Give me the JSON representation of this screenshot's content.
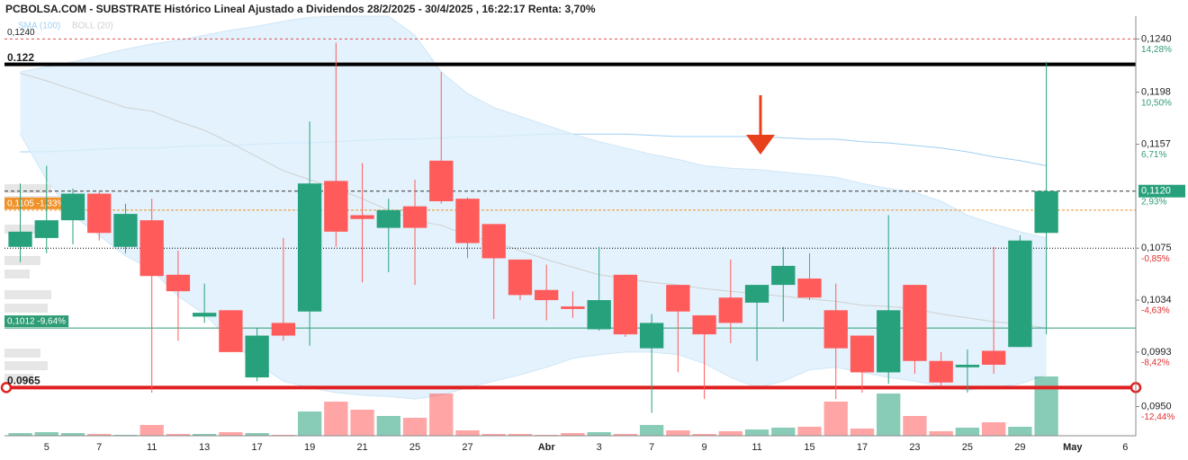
{
  "chart_data": {
    "type": "candlestick",
    "title": "PCBOLSA.COM - SUBSTRATE Histórico Lineal Ajustado a Dividendos 28/2/2025 - 30/4/2025 , 16:22:17 Renta: 3,70%",
    "categories": [
      null,
      "5",
      null,
      "7",
      null,
      "11",
      null,
      "13",
      null,
      "17",
      null,
      "19",
      null,
      "21",
      null,
      "25",
      null,
      "27",
      null,
      null,
      "Abr",
      null,
      "3",
      null,
      "7",
      null,
      "9",
      null,
      "11",
      null,
      "15",
      null,
      "17",
      null,
      "23",
      null,
      "25",
      null,
      "29",
      null,
      "May",
      null,
      "6"
    ],
    "open": [
      0.1076,
      0.1083,
      0.1097,
      0.1118,
      0.1076,
      0.1097,
      0.1054,
      0.1021,
      0.1026,
      0.0973,
      0.1016,
      0.1025,
      0.1128,
      0.1101,
      0.1091,
      0.1108,
      0.1144,
      0.1114,
      0.1094,
      0.1066,
      0.1042,
      0.1029,
      0.1011,
      0.1054,
      0.0996,
      0.1046,
      0.1022,
      0.1036,
      0.1032,
      0.1046,
      0.1051,
      0.1026,
      0.1006,
      0.0977,
      0.1046,
      0.0986,
      0.0981,
      0.0994,
      0.0997,
      0.1087,
      null,
      null,
      null
    ],
    "high": [
      0.1126,
      0.114,
      0.1122,
      0.112,
      0.111,
      0.1114,
      0.1073,
      0.1047,
      0.1026,
      0.1012,
      0.1083,
      0.1175,
      0.1237,
      0.1142,
      0.1114,
      0.1129,
      0.1214,
      0.1115,
      0.1094,
      0.1066,
      0.1062,
      0.1041,
      0.1076,
      0.1054,
      0.1023,
      0.1046,
      0.1022,
      0.1066,
      0.1046,
      0.1076,
      0.1071,
      0.1047,
      0.1006,
      0.1101,
      0.1046,
      0.0993,
      0.0995,
      0.1076,
      0.1085,
      0.1222,
      null,
      null,
      null
    ],
    "low": [
      0.1064,
      0.1071,
      0.1078,
      0.1081,
      0.1071,
      0.0961,
      0.1002,
      0.1016,
      0.0993,
      0.097,
      0.1002,
      0.0998,
      0.1076,
      0.1048,
      0.1056,
      0.1046,
      0.111,
      0.1067,
      0.1019,
      0.1034,
      0.1018,
      0.102,
      0.101,
      0.1005,
      0.0945,
      0.0977,
      0.0956,
      0.1,
      0.0986,
      0.1017,
      0.1034,
      0.0956,
      0.0961,
      0.0968,
      0.0976,
      0.0966,
      0.0961,
      0.0976,
      0.0997,
      0.1007,
      null,
      null,
      null
    ],
    "close": [
      0.1088,
      0.1097,
      0.1118,
      0.1087,
      0.1102,
      0.1053,
      0.1041,
      0.1024,
      0.0993,
      0.1006,
      0.1006,
      0.1126,
      0.1088,
      0.1098,
      0.1105,
      0.1091,
      0.1112,
      0.1079,
      0.1067,
      0.1038,
      0.1034,
      0.1027,
      0.1034,
      0.1007,
      0.1016,
      0.1025,
      0.1007,
      0.1016,
      0.1046,
      0.1061,
      0.1036,
      0.0996,
      0.0977,
      0.1026,
      0.0986,
      0.0969,
      0.0983,
      0.0983,
      0.1081,
      0.112,
      null,
      null,
      null
    ],
    "volume": [
      3,
      4,
      3,
      2,
      1,
      12,
      2,
      2,
      4,
      3,
      1,
      27,
      38,
      29,
      22,
      20,
      47,
      6,
      2,
      2,
      1,
      3,
      4,
      2,
      12,
      6,
      2,
      5,
      7,
      9,
      10,
      38,
      8,
      47,
      22,
      5,
      9,
      15,
      10,
      66,
      null,
      null,
      null
    ],
    "up_color": "#26a17b",
    "down_color": "#ff5b5b",
    "overlays": [
      {
        "name": "SMA (100)",
        "color": "#9fd0f0",
        "values": [
          0.1151,
          0.1151,
          0.1152,
          0.1153,
          0.1154,
          0.1154,
          0.1155,
          0.1156,
          0.1156,
          0.1157,
          0.1158,
          0.1158,
          0.1159,
          0.116,
          0.1161,
          0.1161,
          0.1162,
          0.1163,
          0.1163,
          0.1164,
          0.1165,
          0.1165,
          0.1165,
          0.1165,
          0.1164,
          0.1163,
          0.1163,
          0.1163,
          0.1163,
          0.1162,
          0.1161,
          0.1161,
          0.1159,
          0.1158,
          0.1156,
          0.1154,
          0.1151,
          0.1147,
          0.1144,
          0.114,
          null,
          null,
          null
        ]
      },
      {
        "name": "BOLL (20)",
        "color": "#d0d0d0",
        "fill": "#dcefFb",
        "upper": [
          0.1214,
          0.1218,
          0.1222,
          0.1227,
          0.1232,
          0.1236,
          0.1239,
          0.1243,
          0.1247,
          0.125,
          0.1254,
          0.1257,
          0.1258,
          0.1258,
          0.1258,
          0.1243,
          0.1214,
          0.1197,
          0.1186,
          0.1179,
          0.1172,
          0.1165,
          0.1159,
          0.1154,
          0.1149,
          0.1145,
          0.114,
          0.1138,
          0.1137,
          0.1135,
          0.1133,
          0.1131,
          0.1126,
          0.1122,
          0.1119,
          0.1112,
          0.1101,
          0.1094,
          0.1088,
          0.1083,
          null,
          null,
          null
        ],
        "middle": [
          0.1213,
          0.1207,
          0.12,
          0.1193,
          0.1186,
          0.1183,
          0.1175,
          0.1168,
          0.1158,
          0.1147,
          0.1136,
          0.1129,
          0.1122,
          0.1114,
          0.1105,
          0.1097,
          0.1093,
          0.1085,
          0.108,
          0.1073,
          0.1066,
          0.106,
          0.1054,
          0.1051,
          0.1048,
          0.1046,
          0.1043,
          0.1041,
          0.1039,
          0.1037,
          0.1035,
          0.1033,
          0.103,
          0.1029,
          0.1027,
          0.1023,
          0.102,
          0.1017,
          0.1015,
          0.1012,
          null,
          null,
          null
        ],
        "lower": [
          0.1165,
          0.1129,
          0.1101,
          0.1085,
          0.1069,
          0.1058,
          0.1037,
          0.1023,
          0.1002,
          0.0984,
          0.097,
          0.0965,
          0.0961,
          0.0959,
          0.0958,
          0.0956,
          0.0959,
          0.0965,
          0.097,
          0.0975,
          0.0981,
          0.0988,
          0.0991,
          0.0993,
          0.0993,
          0.0991,
          0.0984,
          0.0973,
          0.0965,
          0.097,
          0.0979,
          0.0981,
          0.0977,
          0.0973,
          0.097,
          0.0966,
          0.0963,
          0.0965,
          0.0968,
          0.0975,
          null,
          null,
          null
        ]
      }
    ],
    "ylim": [
      0.0927,
      0.1258
    ],
    "yticks": [
      {
        "value": 0.124,
        "label": "0,1240"
      },
      {
        "value": 0.1198,
        "label": "0,1198"
      },
      {
        "value": 0.1157,
        "label": "0,1157"
      },
      {
        "value": 0.1075,
        "label": "0,1075"
      },
      {
        "value": 0.1034,
        "label": "0,1034"
      },
      {
        "value": 0.0993,
        "label": "0,0993"
      },
      {
        "value": 0.095,
        "label": "0,0950"
      }
    ],
    "ytick_pct": [
      "14,28%",
      "10,50%",
      "6,71%",
      "-0,85%",
      "-4,63%",
      "-8,42%",
      "-12,44%"
    ],
    "last": {
      "value": 0.112,
      "label": "0,1120",
      "pct": "2,93%",
      "color": "#26a17b"
    },
    "levels": [
      {
        "value": 0.124,
        "label": "0,1240",
        "color": "#e05050",
        "dash": "3,3",
        "width": 1
      },
      {
        "value": 0.122,
        "label": "0.122",
        "color": "#000000",
        "width": 4
      },
      {
        "value": 0.112,
        "color": "#333333",
        "dash": "4,3",
        "width": 1
      },
      {
        "value": 0.1105,
        "label": "0,1105 -1,33%",
        "color": "#f0922a",
        "dash": "3,2",
        "width": 1,
        "boxed": true
      },
      {
        "value": 0.1075,
        "color": "#000000",
        "dash": "1,2",
        "width": 1
      },
      {
        "value": 0.1012,
        "label": "0,1012 -9,64%",
        "color": "#2e9c74",
        "width": 1,
        "boxed": true
      },
      {
        "value": 0.0965,
        "label": "0.0965",
        "color": "#e02020",
        "width": 4,
        "end_markers": true
      }
    ]
  }
}
